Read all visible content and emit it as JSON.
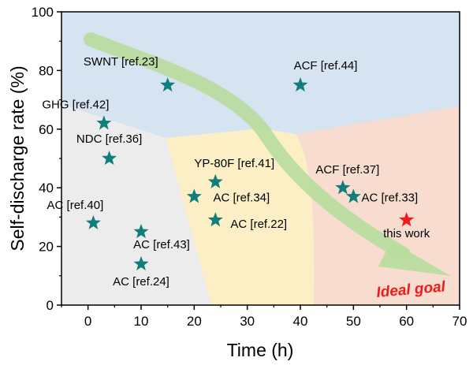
{
  "colors": {
    "star": "#127e7c",
    "highlight_star": "#ef1c1c",
    "ideal_goal_text": "#ef1c1c",
    "arrow": "#b9dc9e",
    "region_blue": "#d6e4f1",
    "region_gray": "#ececec",
    "region_yellow": "#fcefc5",
    "region_peach": "#f8dccf"
  },
  "chart_data": {
    "type": "scatter",
    "xlabel": "Time (h)",
    "ylabel": "Self-discharge rate (%)",
    "xlim": [
      -5,
      70
    ],
    "ylim": [
      0,
      100
    ],
    "xticks": [
      "0",
      "10",
      "20",
      "30",
      "40",
      "50",
      "60",
      "70"
    ],
    "yticks": [
      "0",
      "20",
      "40",
      "60",
      "80",
      "100"
    ],
    "grid": false,
    "points": [
      {
        "label": "SWNT [ref.23]",
        "x": 15,
        "y": 75
      },
      {
        "label": "ACF [ref.44]",
        "x": 40,
        "y": 75
      },
      {
        "label": "GHG [ref.42]",
        "x": 3,
        "y": 62
      },
      {
        "label": "NDC [ref.36]",
        "x": 4,
        "y": 50
      },
      {
        "label": "YP-80F [ref.41]",
        "x": 24,
        "y": 42
      },
      {
        "label": "AC [ref.34]",
        "x": 20,
        "y": 37
      },
      {
        "label": "AC [ref.22]",
        "x": 24,
        "y": 29
      },
      {
        "label": "ACF [ref.37]",
        "x": 48,
        "y": 40
      },
      {
        "label": "AC [ref.33]",
        "x": 50,
        "y": 37
      },
      {
        "label": "AC [ref.40]",
        "x": 1,
        "y": 28
      },
      {
        "label": "AC [ref.43]",
        "x": 10,
        "y": 25
      },
      {
        "label": "AC [ref.24]",
        "x": 10,
        "y": 14
      },
      {
        "label": "this work",
        "x": 60,
        "y": 29,
        "highlight": true
      }
    ],
    "annotations": [
      "Ideal goal"
    ]
  }
}
